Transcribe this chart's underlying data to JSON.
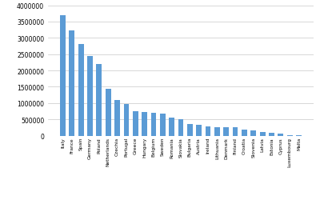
{
  "categories": [
    "Italy",
    "France",
    "Spain",
    "Germany",
    "Poland",
    "Netherlands",
    "Czechia",
    "Portugal",
    "Greece",
    "Hungary",
    "Belgium",
    "Sweden",
    "Romania",
    "Slovakia",
    "Bulgaria",
    "Austria",
    "Ireland",
    "Lithuania",
    "Denmark",
    "Finland",
    "Croatia",
    "Slovenia",
    "Latvia",
    "Estonia",
    "Cyprus",
    "Luxembourg",
    "Malta"
  ],
  "values": [
    3700000,
    3220000,
    2800000,
    2440000,
    2190000,
    1440000,
    1090000,
    970000,
    740000,
    730000,
    710000,
    690000,
    550000,
    510000,
    350000,
    345000,
    295000,
    265000,
    250000,
    250000,
    195000,
    160000,
    120000,
    100000,
    65000,
    20000,
    12000
  ],
  "bar_color": "#5B9BD5",
  "ylim": [
    0,
    4000000
  ],
  "yticks": [
    0,
    500000,
    1000000,
    1500000,
    2000000,
    2500000,
    3000000,
    3500000,
    4000000
  ],
  "background_color": "#ffffff",
  "grid_color": "#c8c8c8",
  "bar_width": 0.6,
  "xlabel_fontsize": 4.2,
  "ylabel_fontsize": 5.5
}
